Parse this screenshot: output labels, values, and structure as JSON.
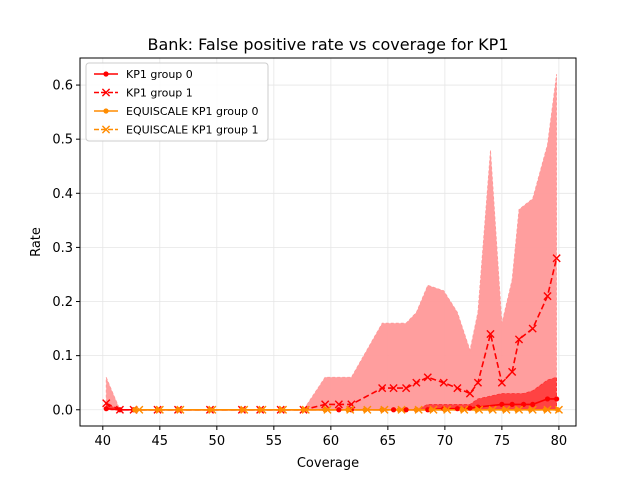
{
  "chart_data": {
    "type": "line",
    "title": "Bank: False positive rate vs coverage for KP1",
    "xlabel": "Coverage",
    "ylabel": "Rate",
    "xlim": [
      38.0,
      81.5
    ],
    "ylim": [
      -0.03,
      0.65
    ],
    "xticks": [
      40,
      45,
      50,
      55,
      60,
      65,
      70,
      75,
      80
    ],
    "yticks": [
      0.0,
      0.1,
      0.2,
      0.3,
      0.4,
      0.5,
      0.6
    ],
    "grid": true,
    "legend_position": "top-left",
    "colors": {
      "kp1": "#ff0000",
      "equiscale": "#ff8c00",
      "band_light": "#ff9999",
      "band_dark": "#ff3333"
    },
    "series": [
      {
        "name": "KP1 group 0",
        "style": "solid",
        "marker": "dot",
        "color": "#ff0000",
        "x": [
          40.3,
          41.5,
          42.7,
          44.8,
          46.6,
          49.4,
          52.2,
          53.8,
          55.6,
          57.6,
          59.5,
          60.7,
          61.8,
          64.5,
          65.5,
          66.6,
          67.5,
          68.5,
          69.9,
          71.1,
          72.2,
          72.9,
          75.0,
          75.9,
          76.9,
          77.7,
          79.0,
          79.8
        ],
        "y": [
          0.002,
          0.0,
          0.0,
          0.0,
          0.0,
          0.0,
          0.0,
          0.0,
          0.0,
          0.0,
          0.0,
          0.0,
          0.0,
          0.0,
          0.0,
          0.0,
          0.0,
          0.0,
          0.002,
          0.002,
          0.003,
          0.005,
          0.01,
          0.01,
          0.01,
          0.01,
          0.02,
          0.02
        ],
        "band_lower": [
          0.0,
          0.0,
          0.0,
          0.0,
          0.0,
          0.0,
          0.0,
          0.0,
          0.0,
          0.0,
          0.0,
          0.0,
          0.0,
          0.0,
          0.0,
          0.0,
          0.0,
          0.0,
          0.0,
          0.0,
          0.0,
          0.0,
          0.0,
          0.0,
          0.0,
          0.0,
          0.0,
          0.0
        ],
        "band_upper": [
          0.01,
          0.0,
          0.0,
          0.0,
          0.0,
          0.0,
          0.0,
          0.0,
          0.0,
          0.0,
          0.0,
          0.0,
          0.0,
          0.0,
          0.0,
          0.0,
          0.0,
          0.01,
          0.01,
          0.01,
          0.01,
          0.02,
          0.03,
          0.03,
          0.03,
          0.035,
          0.055,
          0.06
        ]
      },
      {
        "name": "KP1 group 1",
        "style": "dashed",
        "marker": "x",
        "color": "#ff0000",
        "x": [
          40.3,
          41.5,
          42.7,
          44.8,
          46.6,
          49.4,
          52.2,
          53.8,
          55.6,
          57.6,
          59.5,
          60.7,
          61.8,
          64.5,
          65.5,
          66.6,
          67.5,
          68.5,
          69.9,
          71.1,
          72.2,
          72.9,
          74.0,
          75.0,
          75.9,
          76.5,
          77.7,
          79.0,
          79.8
        ],
        "y": [
          0.012,
          0.0,
          0.0,
          0.0,
          0.0,
          0.0,
          0.0,
          0.0,
          0.0,
          0.0,
          0.01,
          0.01,
          0.01,
          0.04,
          0.04,
          0.04,
          0.05,
          0.06,
          0.05,
          0.04,
          0.03,
          0.05,
          0.14,
          0.05,
          0.07,
          0.13,
          0.15,
          0.21,
          0.28
        ],
        "band_lower": [
          0.0,
          0.0,
          0.0,
          0.0,
          0.0,
          0.0,
          0.0,
          0.0,
          0.0,
          0.0,
          0.0,
          0.0,
          0.0,
          0.0,
          0.0,
          0.0,
          0.0,
          0.0,
          0.0,
          0.0,
          0.0,
          0.0,
          0.0,
          0.0,
          0.0,
          0.0,
          0.0,
          0.0,
          0.0
        ],
        "band_upper": [
          0.06,
          0.0,
          0.0,
          0.0,
          0.0,
          0.0,
          0.0,
          0.0,
          0.0,
          0.0,
          0.06,
          0.06,
          0.06,
          0.16,
          0.16,
          0.16,
          0.18,
          0.23,
          0.22,
          0.18,
          0.11,
          0.18,
          0.48,
          0.16,
          0.24,
          0.37,
          0.39,
          0.49,
          0.62
        ]
      },
      {
        "name": "EQUISCALE KP1 group 0",
        "style": "solid",
        "marker": "dot",
        "color": "#ff8c00",
        "x": [
          42.8,
          44.8,
          46.6,
          49.4,
          52.2,
          53.8,
          55.6,
          57.6,
          59.5,
          61.5,
          63.0,
          64.5,
          66.0,
          67.5,
          68.8,
          70.0,
          71.5,
          72.8,
          74.0,
          75.2,
          76.3,
          77.5,
          78.8,
          79.9
        ],
        "y": [
          0.0,
          0.0,
          0.0,
          0.0,
          0.0,
          0.0,
          0.0,
          0.0,
          0.0,
          0.0,
          0.0,
          0.0,
          0.0,
          0.0,
          0.0,
          0.0,
          0.0,
          0.0,
          0.0,
          0.0,
          0.0,
          0.0,
          0.0,
          0.0
        ],
        "band_lower": [
          0.0,
          0.0,
          0.0,
          0.0,
          0.0,
          0.0,
          0.0,
          0.0,
          0.0,
          0.0,
          0.0,
          0.0,
          0.0,
          0.0,
          0.0,
          0.0,
          0.0,
          0.0,
          0.0,
          0.0,
          0.0,
          0.0,
          0.0,
          0.0
        ],
        "band_upper": [
          0.0,
          0.0,
          0.0,
          0.0,
          0.0,
          0.0,
          0.0,
          0.0,
          0.0,
          0.0,
          0.0,
          0.0,
          0.0,
          0.0,
          0.0,
          0.0,
          0.0,
          0.0,
          0.0,
          0.0,
          0.0,
          0.0,
          0.0,
          0.0
        ]
      },
      {
        "name": "EQUISCALE KP1 group 1",
        "style": "dashed",
        "marker": "x",
        "color": "#ff8c00",
        "x": [
          43.2,
          45.0,
          46.8,
          49.6,
          52.4,
          54.0,
          55.8,
          57.8,
          59.7,
          61.7,
          63.2,
          64.7,
          66.2,
          67.7,
          69.0,
          70.2,
          71.7,
          73.0,
          74.2,
          75.4,
          76.5,
          77.7,
          79.0,
          80.0
        ],
        "y": [
          0.0,
          0.0,
          0.0,
          0.0,
          0.0,
          0.0,
          0.0,
          0.0,
          0.0,
          0.0,
          0.0,
          0.0,
          0.0,
          0.0,
          0.0,
          0.0,
          0.0,
          0.0,
          0.0,
          0.0,
          0.0,
          0.0,
          0.0,
          0.0
        ],
        "band_lower": [
          0.0,
          0.0,
          0.0,
          0.0,
          0.0,
          0.0,
          0.0,
          0.0,
          0.0,
          0.0,
          0.0,
          0.0,
          0.0,
          0.0,
          0.0,
          0.0,
          0.0,
          0.0,
          0.0,
          0.0,
          0.0,
          0.0,
          0.0,
          0.0
        ],
        "band_upper": [
          0.0,
          0.0,
          0.0,
          0.0,
          0.0,
          0.0,
          0.0,
          0.0,
          0.0,
          0.0,
          0.0,
          0.0,
          0.0,
          0.0,
          0.0,
          0.0,
          0.0,
          0.0,
          0.0,
          0.0,
          0.0,
          0.0,
          0.0,
          0.0
        ]
      }
    ]
  }
}
